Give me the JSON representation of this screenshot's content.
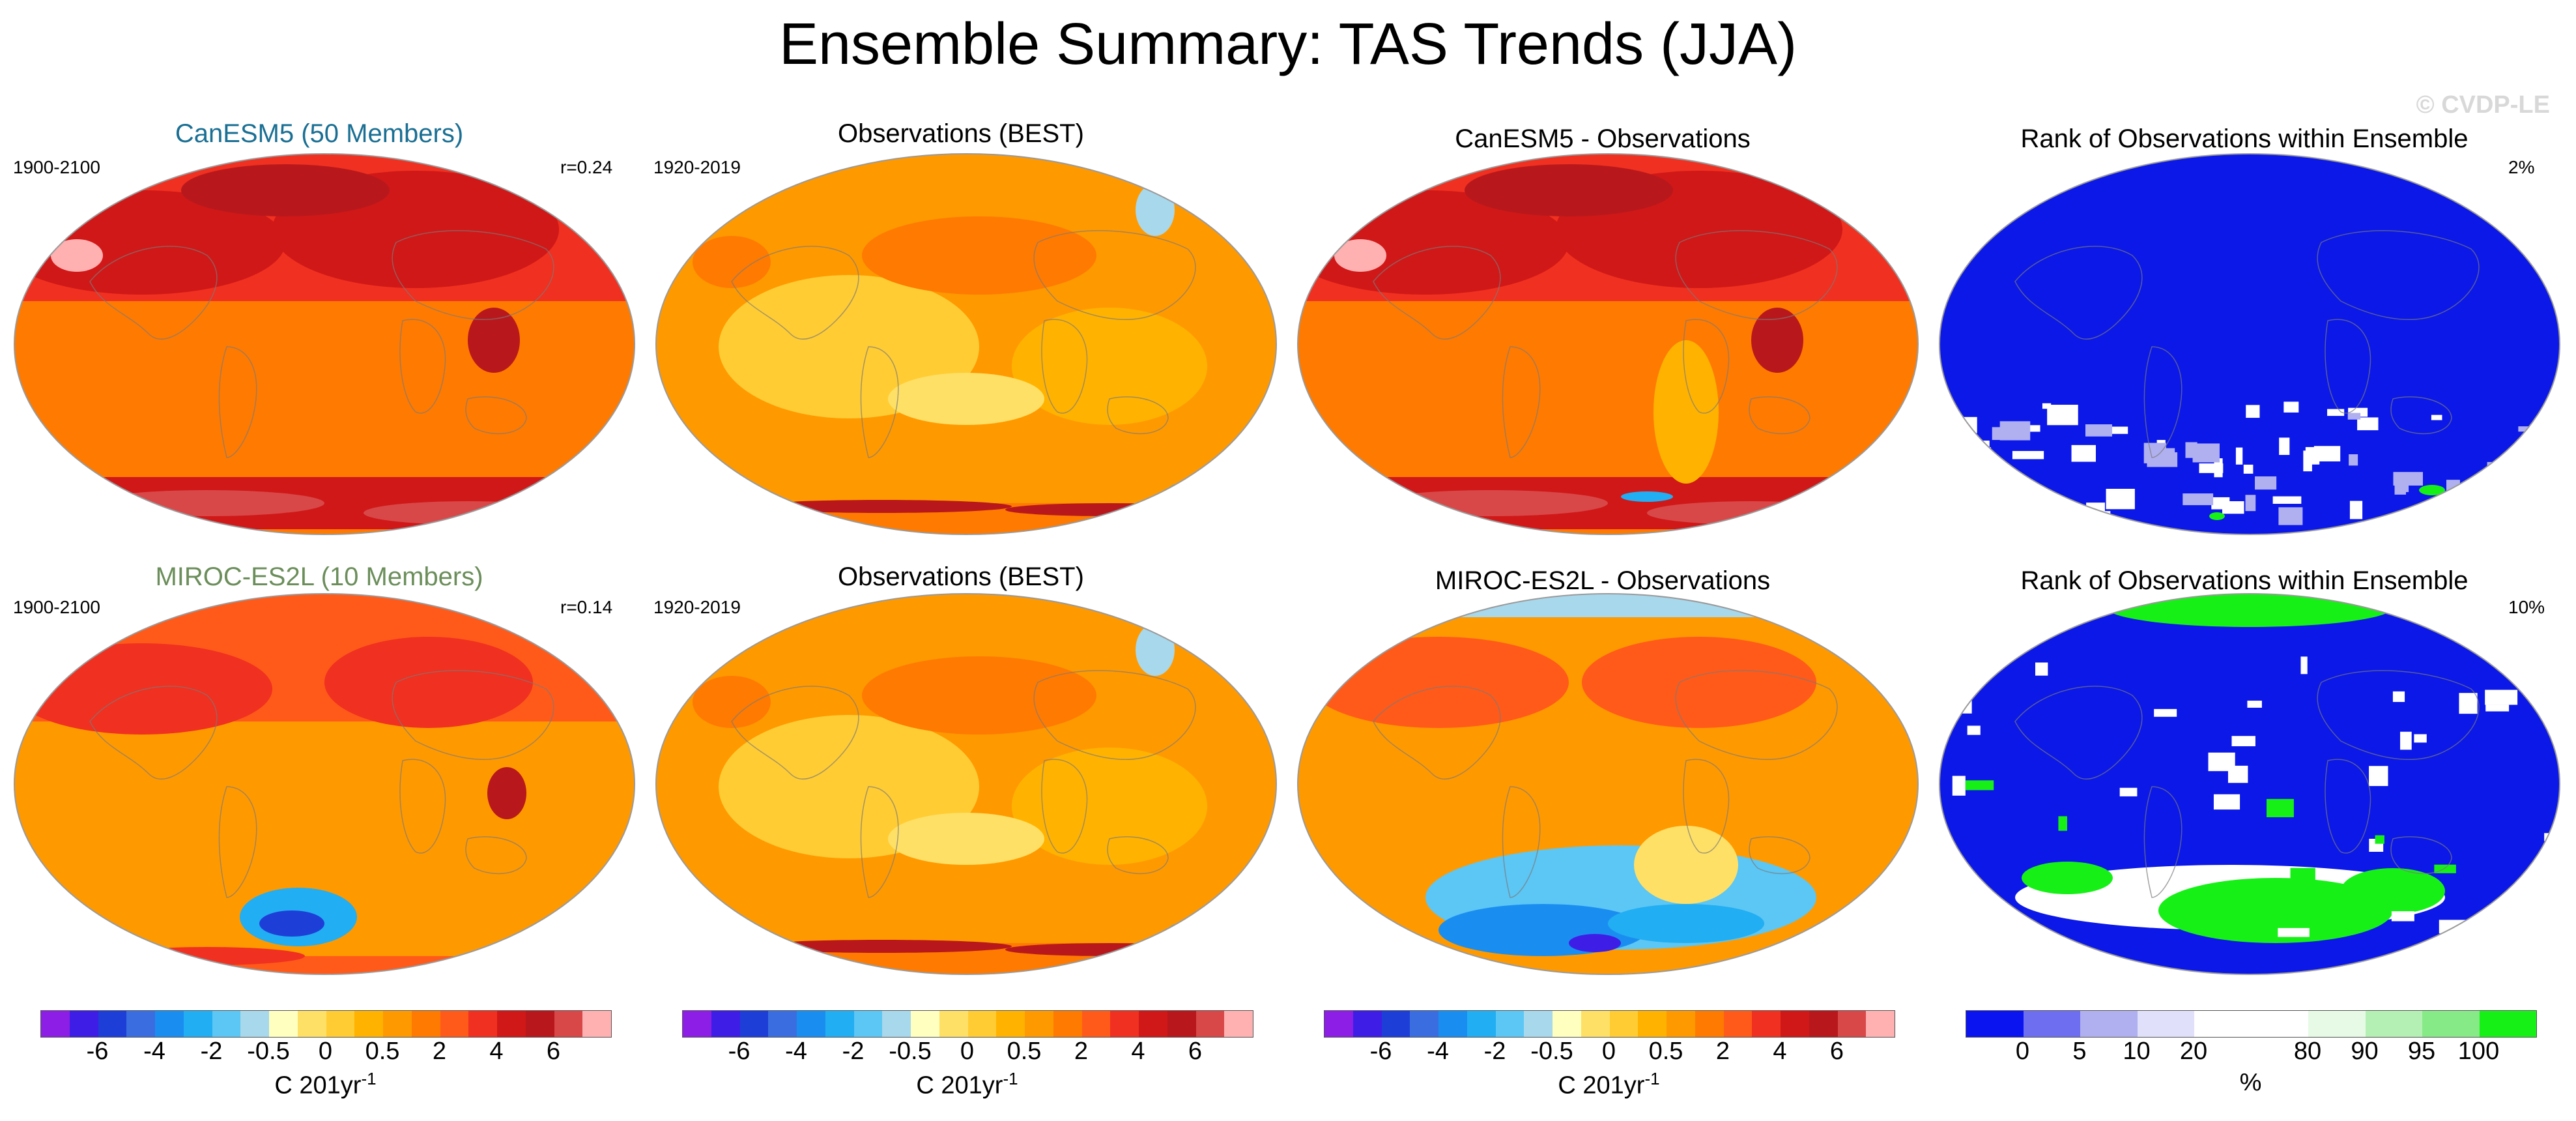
{
  "title": "Ensemble Summary: TAS Trends (JJA)",
  "watermark": "© CVDP-LE",
  "colors": {
    "canesm_title": "#1a6f93",
    "miroc_title": "#6b8e5a",
    "dark_blue": "#0b18e8",
    "green": "#16f016",
    "white": "#ffffff"
  },
  "rows": [
    {
      "panels": [
        {
          "title": "CanESM5 (50 Members)",
          "left_info": "1900-2100",
          "right_info": "r=0.24",
          "kind": "hot"
        },
        {
          "title": "Observations (BEST)",
          "left_info": "1920-2019",
          "right_info": "",
          "kind": "obs"
        },
        {
          "title": "CanESM5 - Observations",
          "left_info": "",
          "right_info": "",
          "kind": "hotdiff"
        },
        {
          "title": "Rank of Observations within Ensemble",
          "left_info": "",
          "right_info": "2%",
          "kind": "rank1"
        }
      ]
    },
    {
      "panels": [
        {
          "title": "MIROC-ES2L (10 Members)",
          "left_info": "1900-2100",
          "right_info": "r=0.14",
          "kind": "warm"
        },
        {
          "title": "Observations (BEST)",
          "left_info": "1920-2019",
          "right_info": "",
          "kind": "obs"
        },
        {
          "title": "MIROC-ES2L - Observations",
          "left_info": "",
          "right_info": "",
          "kind": "mixed"
        },
        {
          "title": "Rank of Observations within Ensemble",
          "left_info": "",
          "right_info": "10%",
          "kind": "rank2"
        }
      ]
    }
  ],
  "colorbar_trend": {
    "colors": [
      "#8c1ee6",
      "#3e1ee6",
      "#1e3ed8",
      "#3a6ee0",
      "#1a8ef0",
      "#22aef2",
      "#5cc6f4",
      "#a8d8ec",
      "#ffffc0",
      "#ffe066",
      "#ffcc33",
      "#ffb300",
      "#ff9900",
      "#ff7a00",
      "#ff5a1a",
      "#f03020",
      "#d01818",
      "#b8181c",
      "#d84848",
      "#ffb0b0"
    ],
    "ticks": [
      "-6",
      "-4",
      "-2",
      "-0.5",
      "0",
      "0.5",
      "2",
      "4",
      "6"
    ],
    "label": "C 201yr",
    "label_sup": "-1"
  },
  "colorbar_rank": {
    "colors": [
      "#0a14f0",
      "#6e6ef0",
      "#b0b0f0",
      "#e0e0fa",
      "#ffffff",
      "#ffffff",
      "#e6fae6",
      "#b4f0b4",
      "#86ea86",
      "#16f016"
    ],
    "ticks": [
      "0",
      "5",
      "10",
      "20",
      "80",
      "90",
      "95",
      "100"
    ],
    "label": "%"
  }
}
